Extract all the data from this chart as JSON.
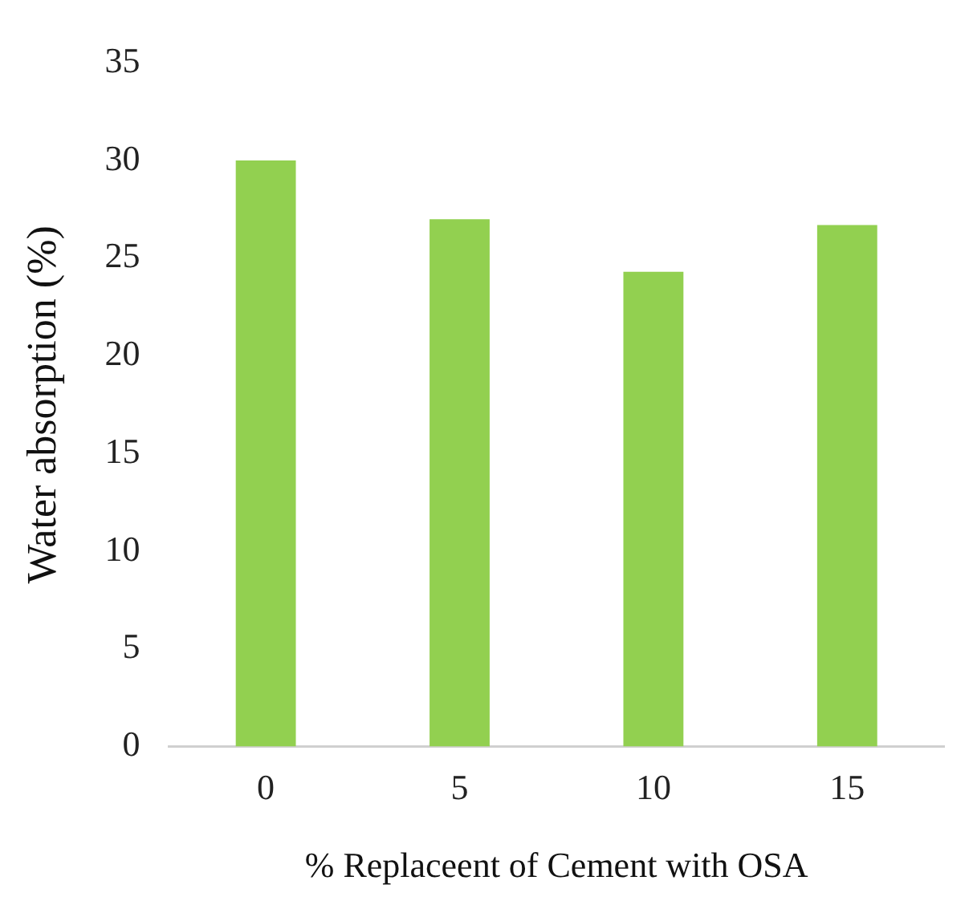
{
  "chart_data": {
    "type": "bar",
    "xlabel": "% Replaceent of Cement with OSA",
    "ylabel": "Water absorption (%)",
    "categories": [
      "0",
      "5",
      "10",
      "15"
    ],
    "series": [
      {
        "color": "#92d050",
        "values": [
          30.0,
          27.0,
          24.3,
          26.7
        ]
      }
    ],
    "ylim": [
      0,
      35
    ],
    "yticks": [
      0,
      5,
      10,
      15,
      20,
      25,
      30,
      35
    ],
    "grid": false,
    "legend": false
  }
}
